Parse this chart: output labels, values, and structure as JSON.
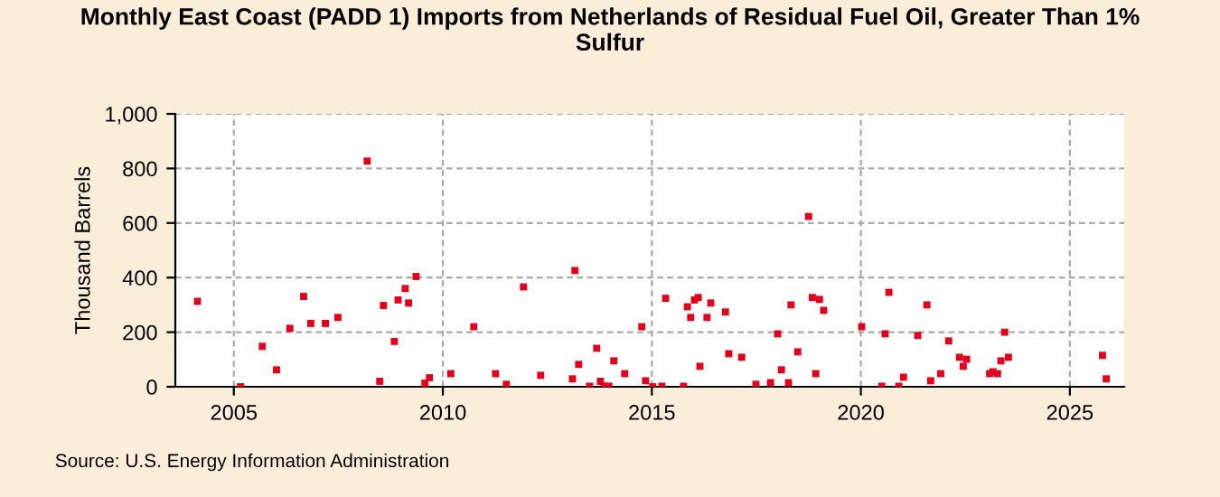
{
  "chart_data": {
    "type": "scatter",
    "title": "Monthly East Coast (PADD 1) Imports from Netherlands of Residual Fuel Oil, Greater Than 1%\nSulfur",
    "ylabel": "Thousand Barrels",
    "x": [
      2004.13,
      2005.16,
      2005.68,
      2006.02,
      2006.34,
      2006.67,
      2006.84,
      2007.19,
      2007.49,
      2008.19,
      2008.49,
      2008.58,
      2008.84,
      2008.93,
      2009.1,
      2009.18,
      2009.36,
      2009.57,
      2009.68,
      2010.19,
      2010.74,
      2011.26,
      2011.52,
      2011.93,
      2012.34,
      2013.1,
      2013.16,
      2013.25,
      2013.51,
      2013.68,
      2013.77,
      2013.86,
      2013.97,
      2014.09,
      2014.35,
      2014.76,
      2014.85,
      2015.02,
      2015.24,
      2015.33,
      2015.76,
      2015.85,
      2015.93,
      2016.02,
      2016.11,
      2016.15,
      2016.32,
      2016.41,
      2016.76,
      2016.84,
      2017.15,
      2017.49,
      2017.84,
      2018.01,
      2018.1,
      2018.27,
      2018.33,
      2018.49,
      2018.75,
      2018.84,
      2018.92,
      2019.01,
      2019.11,
      2020.02,
      2020.5,
      2020.58,
      2020.67,
      2020.91,
      2021.02,
      2021.36,
      2021.58,
      2021.67,
      2021.91,
      2022.1,
      2022.36,
      2022.45,
      2022.53,
      2023.08,
      2023.16,
      2023.27,
      2023.35,
      2023.44,
      2023.53,
      2025.78,
      2025.87
    ],
    "series": [
      {
        "color": "#e3001b",
        "values": [
          313,
          0,
          148,
          62,
          214,
          331,
          232,
          232,
          254,
          827,
          20,
          298,
          166,
          318,
          360,
          307,
          404,
          13,
          33,
          48,
          220,
          48,
          9,
          366,
          42,
          29,
          426,
          82,
          2,
          141,
          20,
          2,
          2,
          95,
          48,
          220,
          22,
          0,
          2,
          324,
          2,
          293,
          254,
          318,
          327,
          75,
          254,
          307,
          274,
          121,
          108,
          9,
          15,
          194,
          62,
          15,
          300,
          128,
          624,
          327,
          48,
          320,
          280,
          220,
          2,
          194,
          346,
          2,
          35,
          188,
          300,
          22,
          48,
          168,
          108,
          75,
          101,
          48,
          55,
          48,
          95,
          200,
          108,
          115,
          29
        ]
      }
    ],
    "xlim": [
      2003.6,
      2026.3
    ],
    "xticks": [
      2005,
      2010,
      2015,
      2020,
      2025
    ],
    "ylim": [
      0,
      1000
    ],
    "yticks": [
      0,
      {
        "value": 200,
        "label": "200"
      },
      {
        "value": 400,
        "label": "400"
      },
      {
        "value": 600,
        "label": "600"
      },
      {
        "value": 800,
        "label": "800"
      },
      {
        "value": 1000,
        "label": "1,000"
      }
    ],
    "grid": true,
    "marker": "square",
    "annotations": [
      "Source: U.S. Energy Information Administration"
    ]
  }
}
